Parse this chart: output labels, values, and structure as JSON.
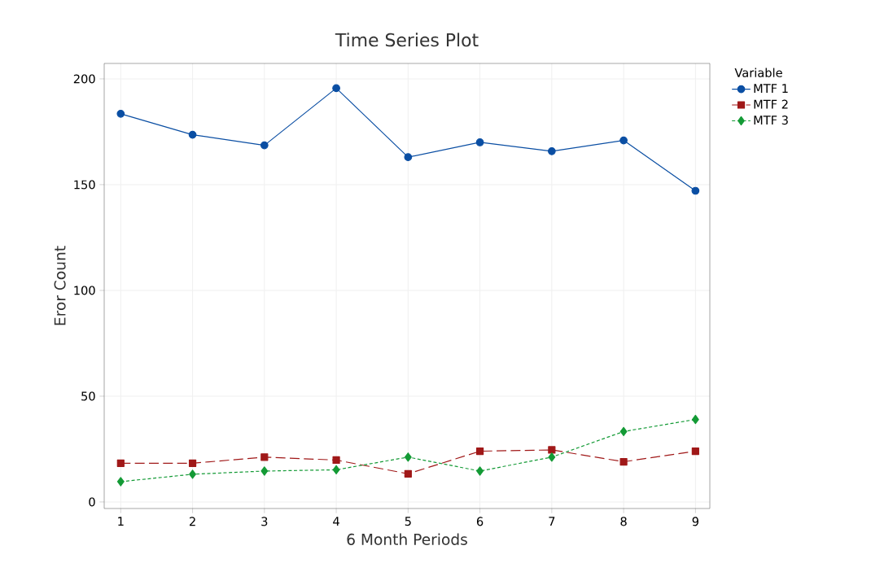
{
  "chart_data": {
    "type": "line",
    "title": "Time Series Plot",
    "xlabel": "6 Month Periods",
    "ylabel": "Eror Count",
    "legend_title": "Variable",
    "x": [
      1,
      2,
      3,
      4,
      5,
      6,
      7,
      8,
      9
    ],
    "series": [
      {
        "name": "MTF 1",
        "color": "#0a4ea3",
        "marker": "circle",
        "line_style": "solid",
        "values": [
          183.5,
          173.6,
          168.6,
          195.6,
          163,
          170,
          165.8,
          170.9,
          147.1
        ]
      },
      {
        "name": "MTF 2",
        "color": "#a01818",
        "marker": "square",
        "line_style": "dashed",
        "values": [
          18.3,
          18.3,
          21.2,
          19.8,
          13.3,
          24,
          24.6,
          19,
          24
        ]
      },
      {
        "name": "MTF 3",
        "color": "#139a35",
        "marker": "diamond",
        "line_style": "dotted",
        "values": [
          9.6,
          13.1,
          14.6,
          15.2,
          21.2,
          14.6,
          21.2,
          33.3,
          39
        ]
      }
    ],
    "xlim": [
      0.77,
      9.2
    ],
    "ylim": [
      -3.1,
      207.3
    ],
    "xticks": [
      1,
      2,
      3,
      4,
      5,
      6,
      7,
      8,
      9
    ],
    "yticks": [
      0,
      50,
      100,
      150,
      200
    ],
    "grid": true,
    "legend": "top right"
  }
}
